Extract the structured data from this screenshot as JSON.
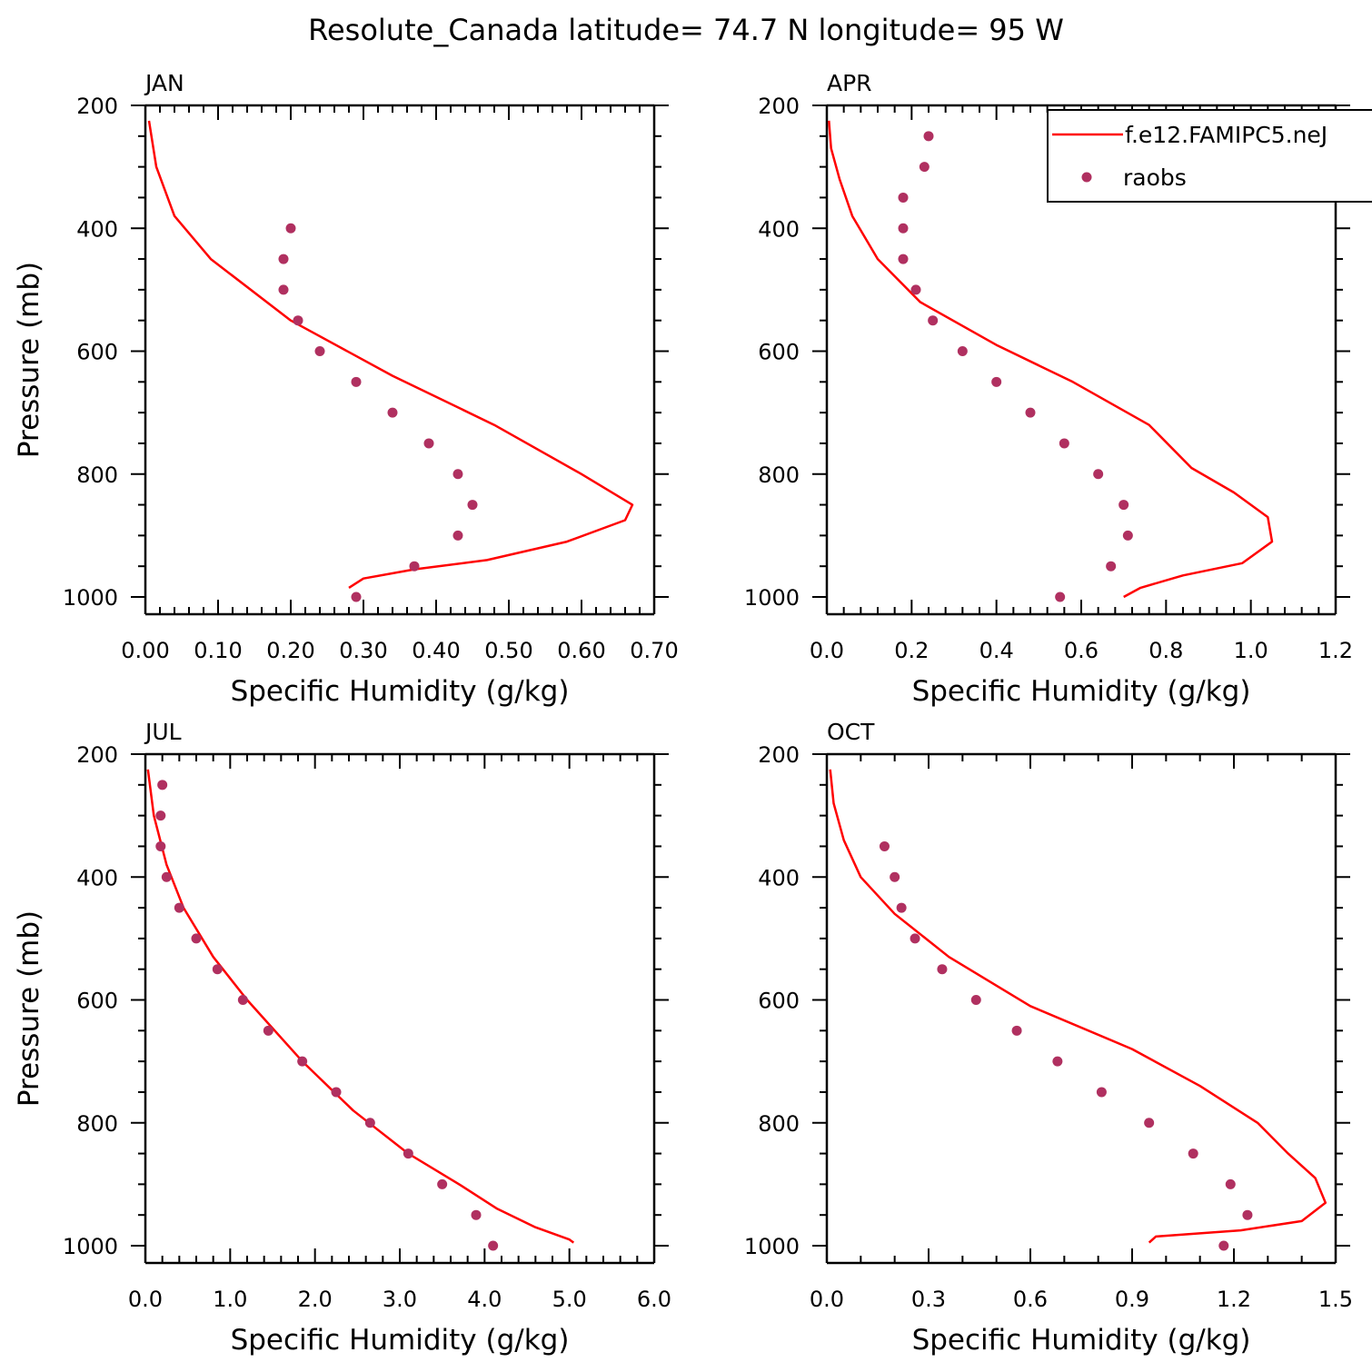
{
  "title": "Resolute_Canada  latitude= 74.7 N longitude= 95 W",
  "legend": {
    "model_label": "f.e12.FAMIPC5.neJ",
    "obs_label": "raobs"
  },
  "colors": {
    "model": "#ff0000",
    "obs": "#b03060",
    "axis": "#000000"
  },
  "chart_data": [
    {
      "type": "line",
      "panel": "JAN",
      "xlabel": "Specific Humidity (g/kg)",
      "ylabel": "Pressure (mb)",
      "xlim": [
        0,
        0.7
      ],
      "ylim": [
        1000,
        200
      ],
      "y_reversed": true,
      "x_ticks": [
        "0.00",
        "0.10",
        "0.20",
        "0.30",
        "0.40",
        "0.50",
        "0.60",
        "0.70"
      ],
      "y_ticks": [
        "200",
        "400",
        "600",
        "800",
        "1000"
      ],
      "series": [
        {
          "name": "f.e12.FAMIPC5.neJ",
          "style": "line",
          "x": [
            0.28,
            0.3,
            0.37,
            0.47,
            0.58,
            0.66,
            0.67,
            0.6,
            0.48,
            0.34,
            0.2,
            0.09,
            0.04,
            0.015,
            0.005
          ],
          "y": [
            985,
            970,
            955,
            940,
            910,
            875,
            850,
            800,
            720,
            640,
            550,
            450,
            380,
            300,
            225
          ]
        },
        {
          "name": "raobs",
          "style": "markers",
          "x": [
            0.29,
            0.37,
            0.43,
            0.45,
            0.43,
            0.39,
            0.34,
            0.29,
            0.24,
            0.21,
            0.19,
            0.19,
            0.2
          ],
          "y": [
            1000,
            950,
            900,
            850,
            800,
            750,
            700,
            650,
            600,
            550,
            500,
            450,
            400
          ]
        }
      ]
    },
    {
      "type": "line",
      "panel": "APR",
      "xlabel": "Specific Humidity (g/kg)",
      "ylabel": "",
      "xlim": [
        0,
        1.2
      ],
      "ylim": [
        1000,
        200
      ],
      "y_reversed": true,
      "x_ticks": [
        "0.0",
        "0.2",
        "0.4",
        "0.6",
        "0.8",
        "1.0",
        "1.2"
      ],
      "y_ticks": [
        "200",
        "400",
        "600",
        "800",
        "1000"
      ],
      "series": [
        {
          "name": "f.e12.FAMIPC5.neJ",
          "style": "line",
          "x": [
            0.7,
            0.74,
            0.84,
            0.98,
            1.05,
            1.04,
            0.96,
            0.86,
            0.76,
            0.58,
            0.4,
            0.22,
            0.12,
            0.06,
            0.03,
            0.01,
            0.005
          ],
          "y": [
            1000,
            985,
            965,
            945,
            910,
            870,
            830,
            790,
            720,
            650,
            590,
            520,
            450,
            380,
            320,
            270,
            225
          ]
        },
        {
          "name": "raobs",
          "style": "markers",
          "x": [
            0.55,
            0.67,
            0.71,
            0.7,
            0.64,
            0.56,
            0.48,
            0.4,
            0.32,
            0.25,
            0.21,
            0.18,
            0.18,
            0.18,
            0.23,
            0.24
          ],
          "y": [
            1000,
            950,
            900,
            850,
            800,
            750,
            700,
            650,
            600,
            550,
            500,
            450,
            400,
            350,
            300,
            250
          ]
        }
      ]
    },
    {
      "type": "line",
      "panel": "JUL",
      "xlabel": "Specific Humidity (g/kg)",
      "ylabel": "Pressure (mb)",
      "xlim": [
        0,
        6
      ],
      "ylim": [
        1000,
        200
      ],
      "y_reversed": true,
      "x_ticks": [
        "0.0",
        "1.0",
        "2.0",
        "3.0",
        "4.0",
        "5.0",
        "6.0"
      ],
      "y_ticks": [
        "200",
        "400",
        "600",
        "800",
        "1000"
      ],
      "series": [
        {
          "name": "f.e12.FAMIPC5.neJ",
          "style": "line",
          "x": [
            5.05,
            5.0,
            4.6,
            4.15,
            3.7,
            3.1,
            2.45,
            1.85,
            1.2,
            0.8,
            0.45,
            0.25,
            0.1,
            0.03
          ],
          "y": [
            995,
            990,
            970,
            940,
            900,
            850,
            780,
            700,
            600,
            530,
            450,
            380,
            300,
            225
          ]
        },
        {
          "name": "raobs",
          "style": "markers",
          "x": [
            4.1,
            3.9,
            3.5,
            3.1,
            2.65,
            2.25,
            1.85,
            1.45,
            1.15,
            0.85,
            0.6,
            0.4,
            0.25,
            0.18,
            0.18,
            0.2
          ],
          "y": [
            1000,
            950,
            900,
            850,
            800,
            750,
            700,
            650,
            600,
            550,
            500,
            450,
            400,
            350,
            300,
            250
          ]
        }
      ]
    },
    {
      "type": "line",
      "panel": "OCT",
      "xlabel": "Specific Humidity (g/kg)",
      "ylabel": "",
      "xlim": [
        0,
        1.5
      ],
      "ylim": [
        1000,
        200
      ],
      "y_reversed": true,
      "x_ticks": [
        "0.0",
        "0.3",
        "0.6",
        "0.9",
        "1.2",
        "1.5"
      ],
      "y_ticks": [
        "200",
        "400",
        "600",
        "800",
        "1000"
      ],
      "series": [
        {
          "name": "f.e12.FAMIPC5.neJ",
          "style": "line",
          "x": [
            0.95,
            0.97,
            1.22,
            1.4,
            1.47,
            1.44,
            1.36,
            1.27,
            1.1,
            0.9,
            0.6,
            0.36,
            0.2,
            0.1,
            0.05,
            0.02,
            0.01
          ],
          "y": [
            995,
            985,
            975,
            960,
            930,
            890,
            850,
            800,
            740,
            680,
            610,
            530,
            460,
            400,
            340,
            280,
            225
          ]
        },
        {
          "name": "raobs",
          "style": "markers",
          "x": [
            1.17,
            1.24,
            1.19,
            1.08,
            0.95,
            0.81,
            0.68,
            0.56,
            0.44,
            0.34,
            0.26,
            0.22,
            0.2,
            0.17
          ],
          "y": [
            1000,
            950,
            900,
            850,
            800,
            750,
            700,
            650,
            600,
            550,
            500,
            450,
            400,
            350
          ]
        }
      ]
    }
  ]
}
